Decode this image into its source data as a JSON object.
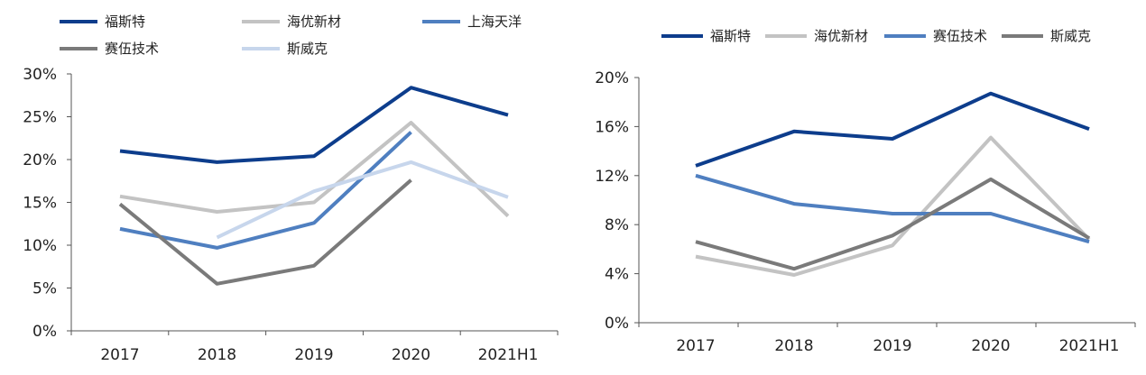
{
  "chart_data": [
    {
      "type": "line",
      "categories": [
        "2017",
        "2018",
        "2019",
        "2020",
        "2021H1"
      ],
      "ylim": [
        0,
        30
      ],
      "yticks": [
        "0%",
        "5%",
        "10%",
        "15%",
        "20%",
        "25%",
        "30%"
      ],
      "tick_values": [
        0,
        5,
        10,
        15,
        20,
        25,
        30
      ],
      "legend_position": "top",
      "grid": false,
      "series": [
        {
          "name": "福斯特",
          "color": "#0d3d8c",
          "values": [
            21.0,
            19.7,
            20.4,
            28.4,
            25.2
          ]
        },
        {
          "name": "海优新材",
          "color": "#c3c3c3",
          "values": [
            15.7,
            13.9,
            15.0,
            24.3,
            13.4
          ]
        },
        {
          "name": "上海天洋",
          "color": "#4f7fc0",
          "values": [
            11.9,
            9.7,
            12.6,
            23.2,
            null
          ]
        },
        {
          "name": "赛伍技术",
          "color": "#7a7a7a",
          "values": [
            14.8,
            5.5,
            7.6,
            17.6,
            null
          ]
        },
        {
          "name": "斯威克",
          "color": "#c7d6ec",
          "values": [
            null,
            10.9,
            16.3,
            19.7,
            15.6
          ]
        }
      ]
    },
    {
      "type": "line",
      "categories": [
        "2017",
        "2018",
        "2019",
        "2020",
        "2021H1"
      ],
      "ylim": [
        0,
        20
      ],
      "yticks": [
        "0%",
        "4%",
        "8%",
        "12%",
        "16%",
        "20%"
      ],
      "tick_values": [
        0,
        4,
        8,
        12,
        16,
        20
      ],
      "legend_position": "top",
      "grid": false,
      "series": [
        {
          "name": "福斯特",
          "color": "#0d3d8c",
          "values": [
            12.8,
            15.6,
            15.0,
            18.7,
            15.8
          ]
        },
        {
          "name": "海优新材",
          "color": "#c3c3c3",
          "values": [
            5.4,
            3.9,
            6.3,
            15.1,
            6.8
          ]
        },
        {
          "name": "赛伍技术",
          "color": "#4f7fc0",
          "values": [
            12.0,
            9.7,
            8.9,
            8.9,
            6.6
          ]
        },
        {
          "name": "斯威克",
          "color": "#7a7a7a",
          "values": [
            6.6,
            4.4,
            7.1,
            11.7,
            6.9
          ]
        }
      ]
    }
  ]
}
